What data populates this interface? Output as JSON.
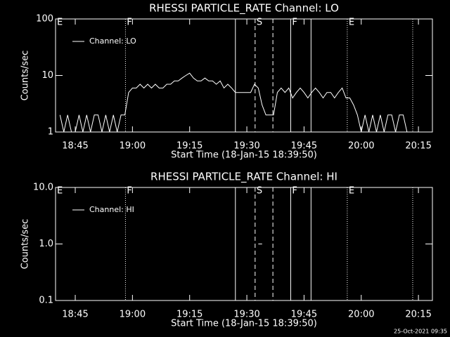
{
  "chart_data": [
    {
      "type": "line",
      "title": "RHESSI PARTICLE_RATE Channel: LO",
      "xlabel": "Start Time (18-Jan-15 18:39:50)",
      "ylabel": "Counts/sec",
      "xlim": [
        "18:39:50",
        "20:18:40"
      ],
      "xticks": [
        "18:45",
        "19:00",
        "19:15",
        "19:30",
        "19:45",
        "20:00",
        "20:15"
      ],
      "ylim": [
        1,
        100
      ],
      "yticks": [
        1,
        10,
        100
      ],
      "log_y": true,
      "legend": "upper left",
      "annotations": [
        {
          "x": "18:39:50",
          "label": "E",
          "style": "solid"
        },
        {
          "x": "18:58:10",
          "label": "F",
          "style": "dotted"
        },
        {
          "x": "19:27:00",
          "style": "solid"
        },
        {
          "x": "19:32:10",
          "label": "S",
          "style": "dashed"
        },
        {
          "x": "19:36:50",
          "style": "dashed"
        },
        {
          "x": "19:41:30",
          "label": "F",
          "style": "solid"
        },
        {
          "x": "19:46:50",
          "style": "solid"
        },
        {
          "x": "19:56:20",
          "label": "E",
          "style": "dotted"
        },
        {
          "x": "20:13:30",
          "style": "dotted"
        }
      ],
      "x": [
        "18:41",
        "18:42",
        "18:43",
        "18:44",
        "18:45",
        "18:46",
        "18:47",
        "18:48",
        "18:49",
        "18:50",
        "18:51",
        "18:52",
        "18:53",
        "18:54",
        "18:55",
        "18:56",
        "18:57",
        "18:58",
        "18:59",
        "19:00",
        "19:01",
        "19:02",
        "19:03",
        "19:04",
        "19:05",
        "19:06",
        "19:07",
        "19:08",
        "19:09",
        "19:10",
        "19:11",
        "19:12",
        "19:13",
        "19:14",
        "19:15",
        "19:16",
        "19:17",
        "19:18",
        "19:19",
        "19:20",
        "19:21",
        "19:22",
        "19:23",
        "19:24",
        "19:25",
        "19:26",
        "19:27",
        "19:28",
        "19:29",
        "19:30",
        "19:31",
        "19:32",
        "19:33",
        "19:34",
        "19:35",
        "19:36",
        "19:37",
        "19:38",
        "19:39",
        "19:40",
        "19:41",
        "19:42",
        "19:43",
        "19:44",
        "19:45",
        "19:46",
        "19:47",
        "19:48",
        "19:49",
        "19:50",
        "19:51",
        "19:52",
        "19:53",
        "19:54",
        "19:55",
        "19:56",
        "19:57",
        "19:58",
        "19:59",
        "20:00",
        "20:01",
        "20:02",
        "20:03",
        "20:04",
        "20:05",
        "20:06",
        "20:07",
        "20:08",
        "20:09",
        "20:10",
        "20:11",
        "20:12"
      ],
      "series": [
        {
          "name": "Channel: LO",
          "color": "#ffffff",
          "values": [
            2,
            1,
            2,
            1,
            1,
            2,
            1,
            2,
            1,
            2,
            2,
            1,
            2,
            1,
            2,
            1,
            2,
            2,
            5,
            6,
            6,
            7,
            6,
            7,
            6,
            7,
            6,
            6,
            7,
            7,
            8,
            8,
            9,
            10,
            11,
            9,
            8,
            8,
            9,
            8,
            8,
            7,
            8,
            6,
            7,
            6,
            5,
            5,
            5,
            5,
            5,
            7,
            6,
            3,
            2,
            2,
            2,
            5,
            6,
            5,
            6,
            4,
            5,
            6,
            5,
            4,
            5,
            6,
            5,
            4,
            5,
            5,
            4,
            5,
            6,
            4,
            4,
            3,
            2,
            1,
            2,
            1,
            2,
            1,
            2,
            1,
            2,
            2,
            1,
            2,
            2,
            1
          ]
        }
      ]
    },
    {
      "type": "line",
      "title": "RHESSI PARTICLE_RATE Channel: HI",
      "xlabel": "Start Time (18-Jan-15 18:39:50)",
      "ylabel": "Counts/sec",
      "xlim": [
        "18:39:50",
        "20:18:40"
      ],
      "xticks": [
        "18:45",
        "19:00",
        "19:15",
        "19:30",
        "19:45",
        "20:00",
        "20:15"
      ],
      "ylim": [
        0.1,
        10
      ],
      "yticks": [
        0.1,
        {
          "value": 1,
          "label": "1.0"
        },
        {
          "value": 10,
          "label": "10.0"
        }
      ],
      "log_y": true,
      "legend": "upper left",
      "annotations": [
        {
          "x": "18:39:50",
          "label": "E",
          "style": "solid"
        },
        {
          "x": "18:58:10",
          "label": "F",
          "style": "dotted"
        },
        {
          "x": "19:27:00",
          "style": "solid"
        },
        {
          "x": "19:32:10",
          "label": "S",
          "style": "dashed"
        },
        {
          "x": "19:36:50",
          "style": "dashed"
        },
        {
          "x": "19:41:30",
          "label": "F",
          "style": "solid"
        },
        {
          "x": "19:46:50",
          "style": "solid"
        },
        {
          "x": "19:56:20",
          "label": "E",
          "style": "dotted"
        },
        {
          "x": "20:13:30",
          "style": "dotted"
        }
      ],
      "x": [
        "19:33",
        "19:34"
      ],
      "series": [
        {
          "name": "Channel: HI",
          "color": "#ffffff",
          "values": [
            1,
            1
          ]
        }
      ]
    }
  ],
  "footer": "25-Oct-2021 09:35"
}
